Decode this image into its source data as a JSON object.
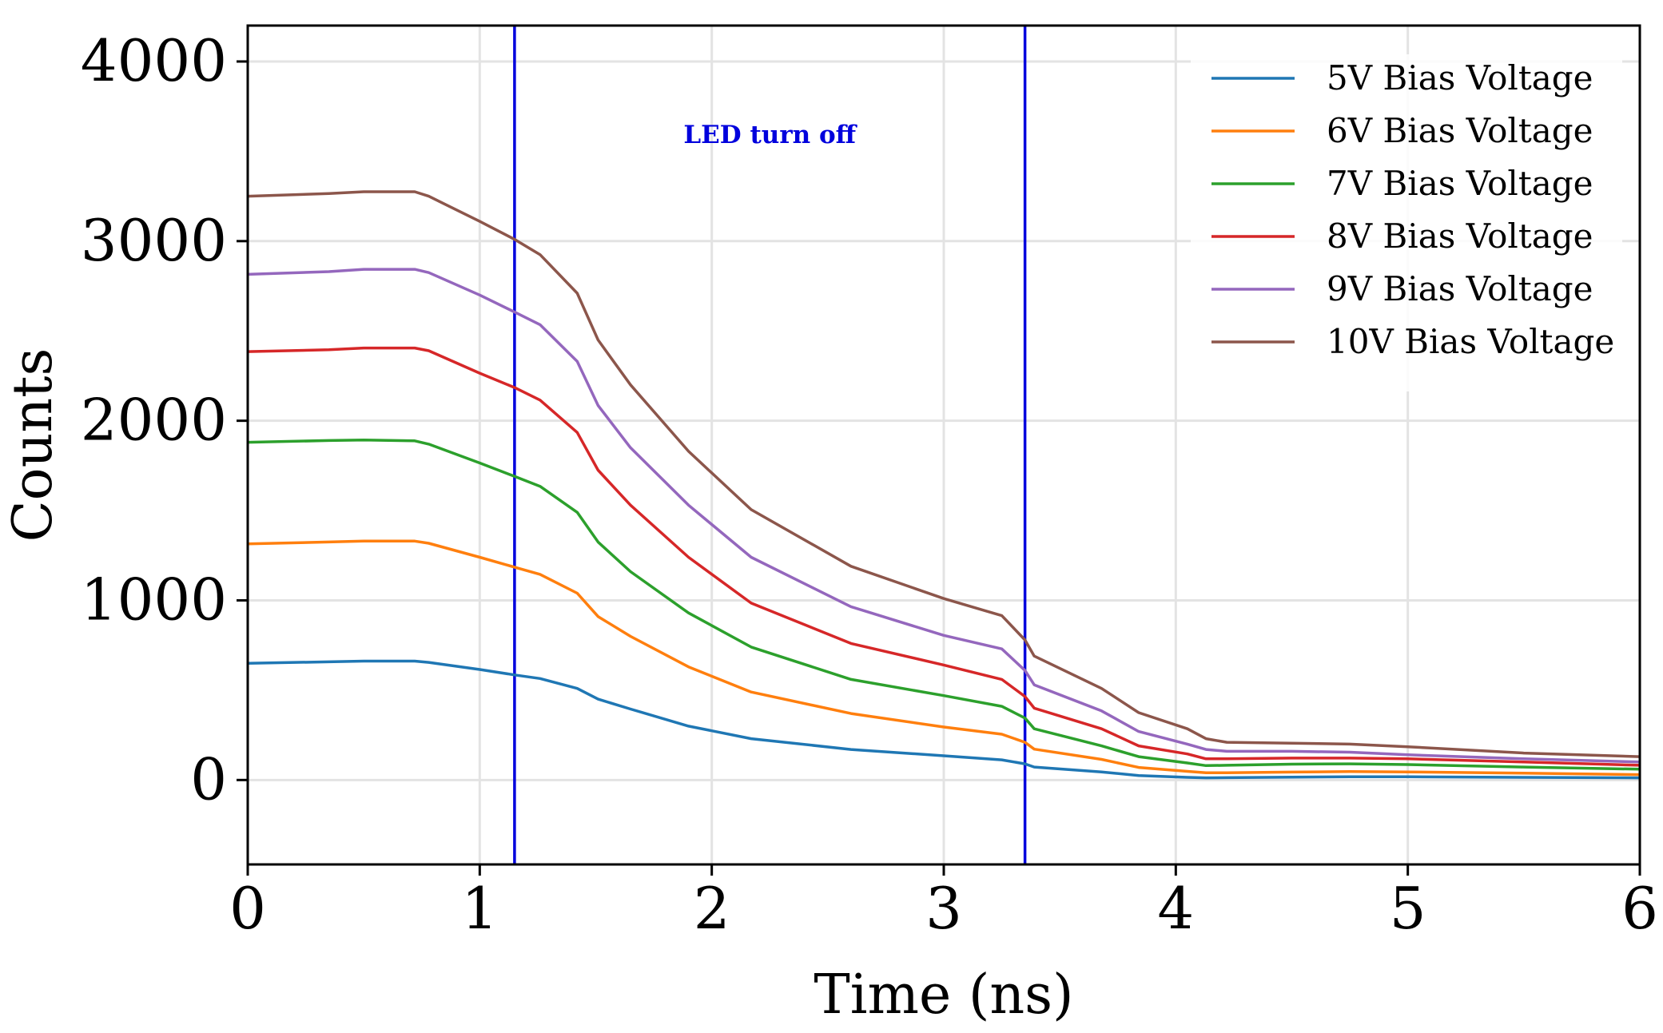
{
  "chart_data": {
    "type": "line",
    "title": "",
    "xlabel": "Time (ns)",
    "ylabel": "Counts",
    "xlim": [
      0,
      6
    ],
    "ylim": [
      -470,
      4200
    ],
    "xticks": [
      0,
      1,
      2,
      3,
      4,
      5,
      6
    ],
    "xtick_labels": [
      "0",
      "1",
      "2",
      "3",
      "4",
      "5",
      "6"
    ],
    "yticks": [
      0,
      1000,
      2000,
      3000,
      4000
    ],
    "ytick_labels": [
      "0",
      "1000",
      "2000",
      "3000",
      "4000"
    ],
    "grid": true,
    "legend_position": "top-right",
    "vertical_lines": [
      {
        "x": 1.15,
        "color": "#0000dd"
      },
      {
        "x": 3.35,
        "color": "#0000dd"
      }
    ],
    "annotation": {
      "text": "LED turn off",
      "x": 2.25,
      "y": 3600,
      "color": "#0000dd"
    },
    "x": [
      0,
      0.35,
      0.5,
      0.72,
      0.78,
      1.0,
      1.15,
      1.26,
      1.42,
      1.51,
      1.65,
      1.9,
      2.17,
      2.6,
      3.0,
      3.25,
      3.35,
      3.39,
      3.68,
      3.84,
      4.05,
      4.13,
      4.22,
      4.5,
      4.75,
      5.0,
      5.5,
      6.0
    ],
    "series": [
      {
        "name": "5V  Bias Voltage",
        "color": "#1f77b4",
        "values": [
          650,
          658,
          662,
          662,
          655,
          615,
          585,
          565,
          510,
          450,
          395,
          300,
          230,
          170,
          135,
          112,
          90,
          72,
          45,
          25,
          15,
          12,
          13,
          16,
          18,
          18,
          15,
          12
        ]
      },
      {
        "name": "6V  Bias Voltage",
        "color": "#ff7f0e",
        "values": [
          1315,
          1325,
          1330,
          1330,
          1318,
          1240,
          1185,
          1145,
          1040,
          910,
          800,
          630,
          490,
          370,
          295,
          255,
          210,
          172,
          115,
          70,
          48,
          40,
          40,
          44,
          47,
          45,
          38,
          30
        ]
      },
      {
        "name": "7V  Bias Voltage",
        "color": "#2ca02c",
        "values": [
          1880,
          1890,
          1893,
          1888,
          1870,
          1765,
          1690,
          1635,
          1490,
          1325,
          1160,
          930,
          740,
          560,
          470,
          410,
          345,
          285,
          190,
          130,
          95,
          80,
          82,
          88,
          90,
          86,
          72,
          60
        ]
      },
      {
        "name": "8V  Bias Voltage",
        "color": "#d62728",
        "values": [
          2385,
          2395,
          2405,
          2405,
          2390,
          2265,
          2185,
          2115,
          1935,
          1725,
          1530,
          1240,
          985,
          760,
          640,
          560,
          465,
          400,
          285,
          190,
          145,
          118,
          118,
          122,
          122,
          118,
          100,
          82
        ]
      },
      {
        "name": "9V  Bias Voltage",
        "color": "#9467bd",
        "values": [
          2815,
          2830,
          2843,
          2843,
          2825,
          2700,
          2605,
          2535,
          2330,
          2085,
          1850,
          1530,
          1240,
          965,
          805,
          730,
          610,
          530,
          385,
          270,
          200,
          170,
          160,
          160,
          155,
          140,
          118,
          100
        ]
      },
      {
        "name": "10V Bias Voltage",
        "color": "#8c564b",
        "values": [
          3250,
          3265,
          3275,
          3275,
          3250,
          3110,
          3010,
          2925,
          2710,
          2450,
          2200,
          1830,
          1505,
          1190,
          1010,
          915,
          780,
          690,
          510,
          375,
          285,
          230,
          210,
          205,
          200,
          185,
          150,
          130
        ]
      }
    ]
  }
}
